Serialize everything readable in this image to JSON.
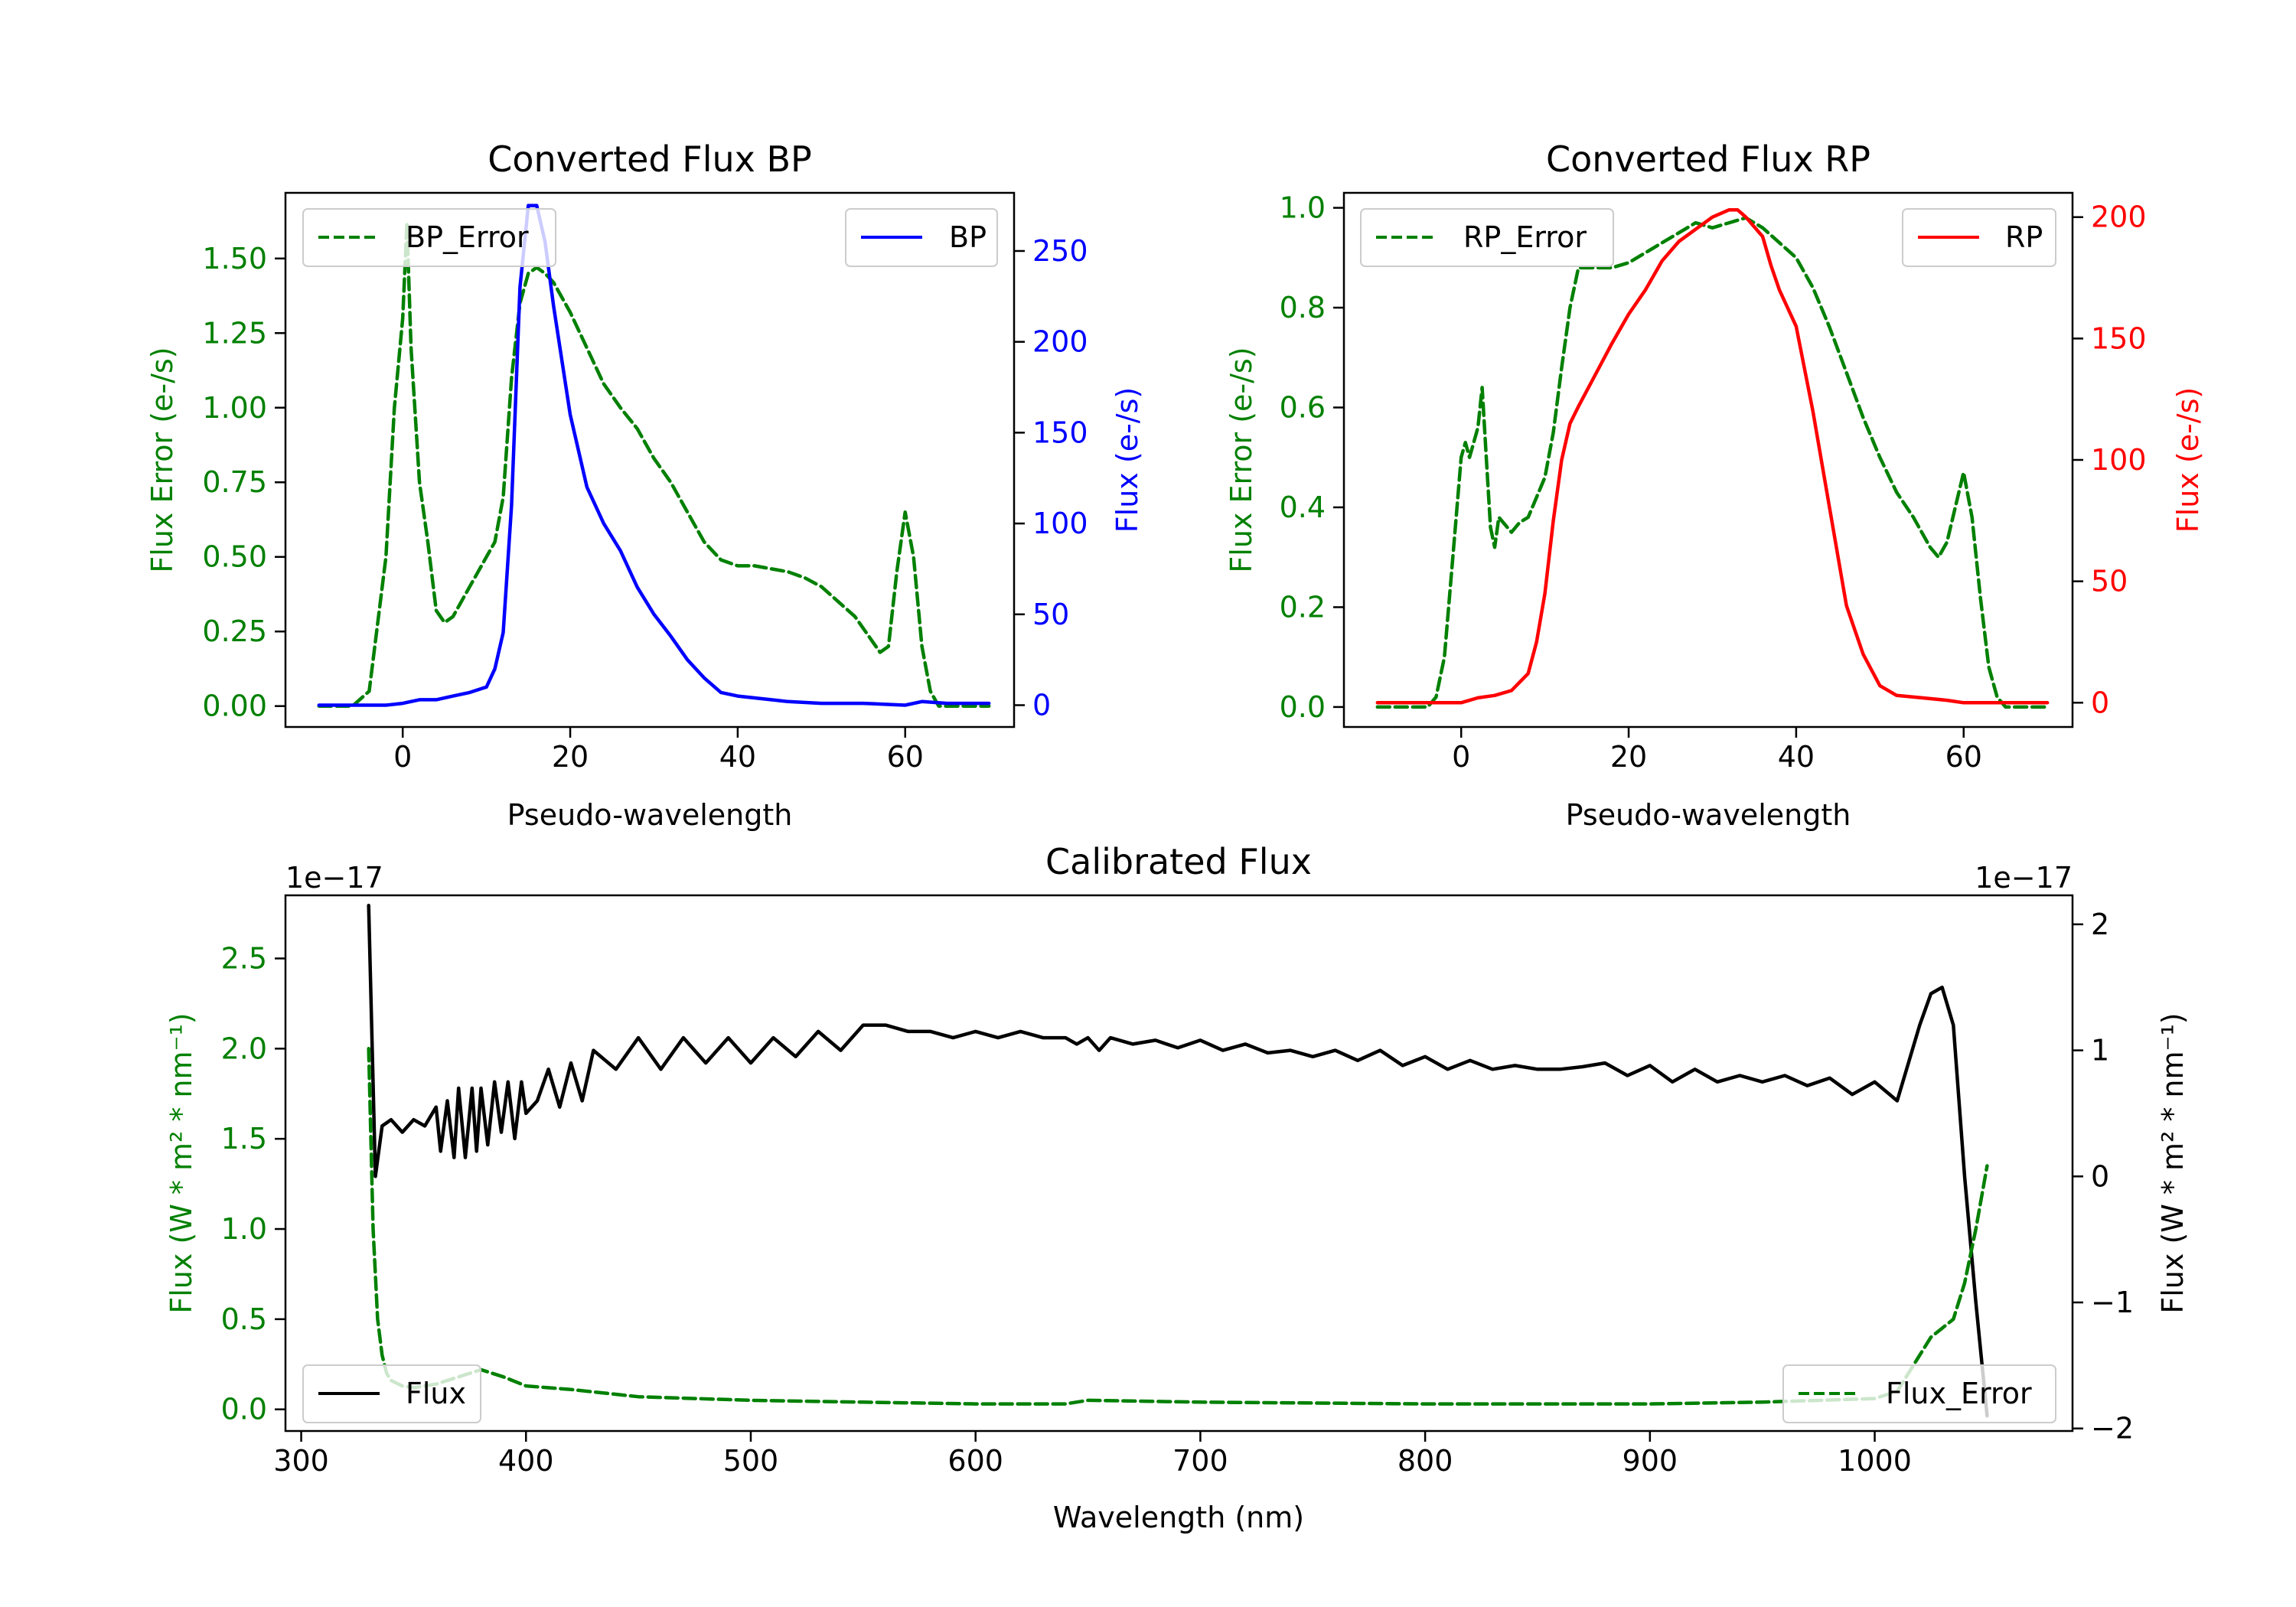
{
  "colors": {
    "green": "#008000",
    "blue": "#0000ff",
    "red": "#ff0000",
    "black": "#000000"
  },
  "chart_data": [
    {
      "id": "bp",
      "type": "line",
      "title": "Converted Flux BP",
      "xlabel": "Pseudo-wavelength",
      "ylabel_left": "Flux Error (e-/s)",
      "ylabel_right": "Flux (e-/s)",
      "xlim": [
        -14,
        73
      ],
      "ylim_left": [
        -0.07,
        1.72
      ],
      "ylim_right": [
        -12,
        282
      ],
      "xticks": [
        0,
        20,
        40,
        60
      ],
      "yticks_left": [
        "0.00",
        "0.25",
        "0.50",
        "0.75",
        "1.00",
        "1.25",
        "1.50"
      ],
      "yticks_right": [
        "0",
        "50",
        "100",
        "150",
        "200",
        "250"
      ],
      "legend": [
        {
          "label": "BP_Error",
          "position": "upper-left",
          "style": "dashed",
          "color": "#008000"
        },
        {
          "label": "BP",
          "position": "upper-right",
          "style": "solid",
          "color": "#0000ff"
        }
      ],
      "series": [
        {
          "name": "BP_Error",
          "axis": "left",
          "color": "#008000",
          "style": "dashed",
          "x": [
            -10,
            -6,
            -4,
            -2,
            -1,
            0,
            0.5,
            1,
            2,
            3,
            4,
            5,
            6,
            7,
            8,
            9,
            10,
            11,
            12,
            13,
            14,
            15,
            16,
            17,
            18,
            20,
            22,
            24,
            26,
            28,
            30,
            32,
            34,
            36,
            38,
            40,
            42,
            44,
            46,
            48,
            50,
            52,
            54,
            56,
            57,
            58,
            59,
            60,
            61,
            62,
            63,
            64,
            66,
            70
          ],
          "y": [
            0,
            0,
            0.05,
            0.5,
            1.0,
            1.3,
            1.62,
            1.2,
            0.75,
            0.55,
            0.32,
            0.28,
            0.3,
            0.35,
            0.4,
            0.45,
            0.5,
            0.55,
            0.7,
            1.1,
            1.35,
            1.45,
            1.47,
            1.45,
            1.42,
            1.32,
            1.2,
            1.08,
            1.0,
            0.93,
            0.83,
            0.75,
            0.65,
            0.55,
            0.49,
            0.47,
            0.47,
            0.46,
            0.45,
            0.43,
            0.4,
            0.35,
            0.3,
            0.22,
            0.18,
            0.2,
            0.45,
            0.65,
            0.5,
            0.2,
            0.05,
            0.0,
            0,
            0
          ]
        },
        {
          "name": "BP",
          "axis": "right",
          "color": "#0000ff",
          "style": "solid",
          "x": [
            -10,
            -4,
            -2,
            0,
            2,
            4,
            6,
            8,
            10,
            11,
            12,
            13,
            14,
            15,
            16,
            17,
            18,
            19,
            20,
            22,
            24,
            26,
            28,
            30,
            32,
            34,
            36,
            38,
            40,
            42,
            44,
            46,
            50,
            55,
            60,
            62,
            65,
            70
          ],
          "y": [
            0,
            0,
            0,
            1,
            3,
            3,
            5,
            7,
            10,
            20,
            40,
            110,
            230,
            275,
            275,
            255,
            220,
            190,
            160,
            120,
            100,
            85,
            65,
            50,
            38,
            25,
            15,
            7,
            5,
            4,
            3,
            2,
            1,
            1,
            0,
            2,
            1,
            1
          ]
        }
      ]
    },
    {
      "id": "rp",
      "type": "line",
      "title": "Converted Flux RP",
      "xlabel": "Pseudo-wavelength",
      "ylabel_left": "Flux Error (e-/s)",
      "ylabel_right": "Flux (e-/s)",
      "xlim": [
        -14,
        73
      ],
      "ylim_left": [
        -0.04,
        1.03
      ],
      "ylim_right": [
        -10,
        210
      ],
      "xticks": [
        0,
        20,
        40,
        60
      ],
      "yticks_left": [
        "0.0",
        "0.2",
        "0.4",
        "0.6",
        "0.8",
        "1.0"
      ],
      "yticks_right": [
        "0",
        "50",
        "100",
        "150",
        "200"
      ],
      "legend": [
        {
          "label": "RP_Error",
          "position": "upper-left",
          "style": "dashed",
          "color": "#008000"
        },
        {
          "label": "RP",
          "position": "upper-right",
          "style": "solid",
          "color": "#ff0000"
        }
      ],
      "series": [
        {
          "name": "RP_Error",
          "axis": "left",
          "color": "#008000",
          "style": "dashed",
          "x": [
            -10,
            -4,
            -3,
            -2,
            -1,
            0,
            0.5,
            1,
            1.5,
            2,
            2.5,
            3,
            3.5,
            4,
            4.5,
            5,
            6,
            7,
            8,
            9,
            10,
            11,
            12,
            13,
            14,
            15,
            16,
            18,
            20,
            22,
            24,
            26,
            28,
            30,
            32,
            34,
            36,
            38,
            40,
            42,
            44,
            46,
            48,
            50,
            52,
            54,
            55,
            56,
            57,
            58,
            59,
            60,
            61,
            62,
            63,
            64,
            65,
            66,
            70
          ],
          "y": [
            0,
            0,
            0.02,
            0.1,
            0.3,
            0.5,
            0.53,
            0.5,
            0.53,
            0.56,
            0.64,
            0.5,
            0.36,
            0.32,
            0.38,
            0.37,
            0.35,
            0.37,
            0.38,
            0.42,
            0.46,
            0.55,
            0.68,
            0.8,
            0.88,
            0.88,
            0.88,
            0.88,
            0.89,
            0.91,
            0.93,
            0.95,
            0.97,
            0.96,
            0.97,
            0.98,
            0.96,
            0.93,
            0.9,
            0.84,
            0.76,
            0.67,
            0.58,
            0.5,
            0.43,
            0.38,
            0.35,
            0.32,
            0.3,
            0.33,
            0.4,
            0.47,
            0.38,
            0.22,
            0.08,
            0.02,
            0,
            0,
            0
          ]
        },
        {
          "name": "RP",
          "axis": "right",
          "color": "#ff0000",
          "style": "solid",
          "x": [
            -10,
            -2,
            0,
            2,
            4,
            6,
            8,
            9,
            10,
            11,
            12,
            13,
            14,
            16,
            18,
            20,
            22,
            24,
            26,
            28,
            30,
            32,
            33,
            34,
            36,
            37,
            38,
            40,
            42,
            44,
            46,
            48,
            50,
            52,
            55,
            58,
            60,
            65,
            70
          ],
          "y": [
            0,
            0,
            0,
            2,
            3,
            5,
            12,
            25,
            45,
            75,
            100,
            115,
            122,
            135,
            148,
            160,
            170,
            182,
            190,
            195,
            200,
            203,
            203,
            200,
            192,
            180,
            170,
            155,
            120,
            80,
            40,
            20,
            7,
            3,
            2,
            1,
            0,
            0,
            0
          ]
        }
      ]
    },
    {
      "id": "cal",
      "type": "line",
      "title": "Calibrated Flux",
      "xlabel": "Wavelength (nm)",
      "ylabel_left": "Flux (W * m² * nm⁻¹)",
      "ylabel_right": "Flux (W * m² * nm⁻¹)",
      "offset_left": "1e−17",
      "offset_right": "1e−17",
      "xlim": [
        293,
        1088
      ],
      "ylim_left": [
        -0.12,
        2.85
      ],
      "ylim_right": [
        -2.02,
        2.23
      ],
      "xticks": [
        300,
        400,
        500,
        600,
        700,
        800,
        900,
        1000
      ],
      "yticks_left": [
        "0.0",
        "0.5",
        "1.0",
        "1.5",
        "2.0",
        "2.5"
      ],
      "yticks_right": [
        "−2",
        "−1",
        "0",
        "1",
        "2"
      ],
      "legend": [
        {
          "label": "Flux",
          "position": "lower-left",
          "style": "solid",
          "color": "#000000"
        },
        {
          "label": "Flux_Error",
          "position": "lower-right",
          "style": "dashed",
          "color": "#008000"
        }
      ],
      "series": [
        {
          "name": "Flux",
          "axis": "right",
          "color": "#000000",
          "style": "solid",
          "x": [
            330,
            333,
            336,
            340,
            345,
            350,
            355,
            360,
            362,
            365,
            368,
            370,
            373,
            376,
            378,
            380,
            383,
            386,
            389,
            392,
            395,
            398,
            400,
            405,
            410,
            415,
            420,
            425,
            430,
            440,
            450,
            460,
            470,
            480,
            490,
            500,
            510,
            520,
            530,
            540,
            550,
            560,
            570,
            580,
            590,
            600,
            610,
            620,
            630,
            640,
            645,
            650,
            655,
            660,
            670,
            680,
            690,
            700,
            710,
            720,
            730,
            740,
            750,
            760,
            770,
            780,
            790,
            800,
            810,
            820,
            830,
            840,
            850,
            860,
            870,
            880,
            890,
            900,
            910,
            920,
            930,
            940,
            950,
            960,
            970,
            980,
            990,
            1000,
            1010,
            1015,
            1020,
            1025,
            1030,
            1035,
            1040,
            1045,
            1050
          ],
          "y": [
            2.15,
            0.0,
            0.4,
            0.45,
            0.35,
            0.45,
            0.4,
            0.55,
            0.2,
            0.6,
            0.15,
            0.7,
            0.15,
            0.7,
            0.2,
            0.7,
            0.25,
            0.75,
            0.35,
            0.75,
            0.3,
            0.75,
            0.5,
            0.6,
            0.85,
            0.55,
            0.9,
            0.6,
            1.0,
            0.85,
            1.1,
            0.85,
            1.1,
            0.9,
            1.1,
            0.9,
            1.1,
            0.95,
            1.15,
            1.0,
            1.2,
            1.2,
            1.15,
            1.15,
            1.1,
            1.15,
            1.1,
            1.15,
            1.1,
            1.1,
            1.05,
            1.1,
            1.0,
            1.1,
            1.05,
            1.08,
            1.02,
            1.08,
            1.0,
            1.05,
            0.98,
            1.0,
            0.95,
            1.0,
            0.92,
            1.0,
            0.88,
            0.95,
            0.85,
            0.92,
            0.85,
            0.88,
            0.85,
            0.85,
            0.87,
            0.9,
            0.8,
            0.88,
            0.75,
            0.85,
            0.75,
            0.8,
            0.75,
            0.8,
            0.72,
            0.78,
            0.65,
            0.75,
            0.6,
            0.9,
            1.2,
            1.45,
            1.5,
            1.2,
            0.0,
            -1.0,
            -1.9
          ]
        },
        {
          "name": "Flux_Error",
          "axis": "left",
          "color": "#008000",
          "style": "dashed",
          "x": [
            330,
            332,
            334,
            336,
            338,
            340,
            345,
            350,
            360,
            370,
            380,
            390,
            400,
            420,
            450,
            500,
            550,
            600,
            640,
            650,
            700,
            800,
            900,
            950,
            1000,
            1010,
            1015,
            1020,
            1025,
            1030,
            1035,
            1040,
            1045,
            1050
          ],
          "y": [
            2.0,
            1.0,
            0.5,
            0.3,
            0.2,
            0.16,
            0.13,
            0.12,
            0.14,
            0.18,
            0.22,
            0.18,
            0.13,
            0.11,
            0.07,
            0.05,
            0.04,
            0.03,
            0.03,
            0.05,
            0.04,
            0.03,
            0.03,
            0.04,
            0.06,
            0.1,
            0.2,
            0.3,
            0.4,
            0.45,
            0.5,
            0.7,
            1.0,
            1.35
          ]
        }
      ]
    }
  ]
}
